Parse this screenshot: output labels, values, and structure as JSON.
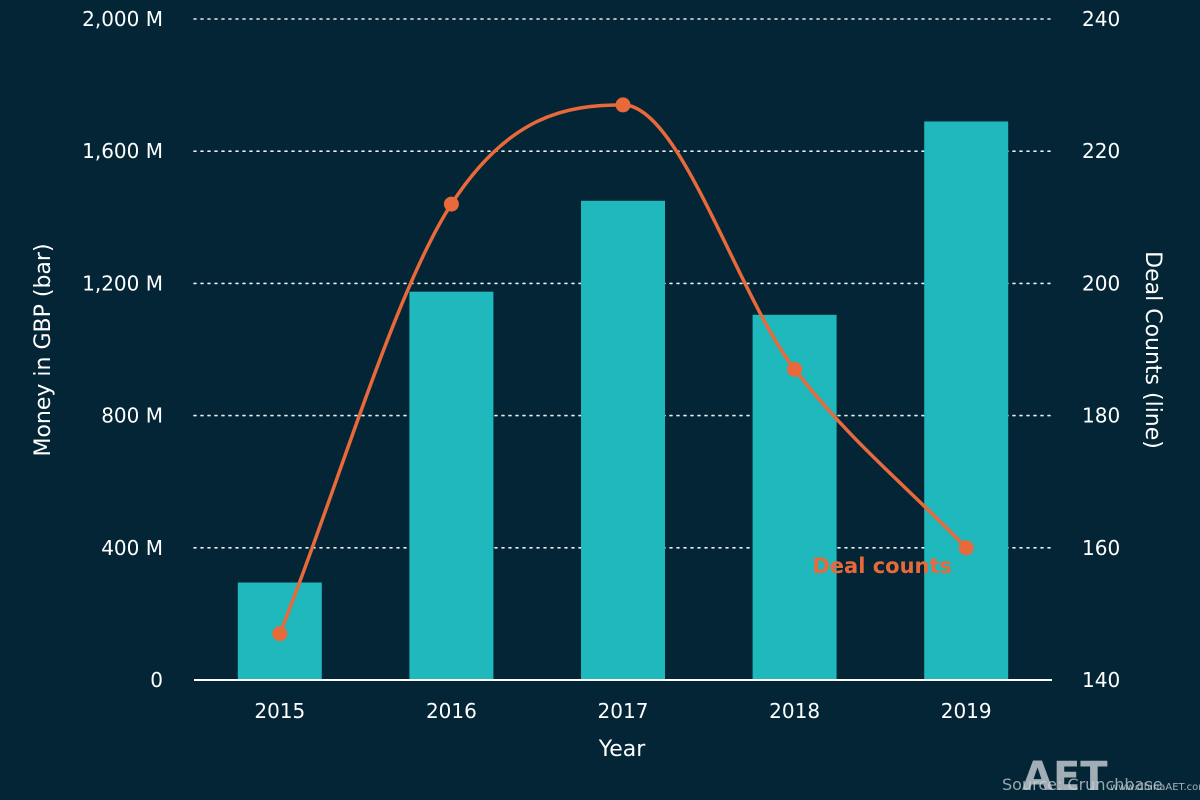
{
  "chart_data": {
    "type": "bar",
    "title": "",
    "xlabel": "Year",
    "ylabel": "Money in GBP (bar)",
    "y2label": "Deal Counts (line)",
    "categories": [
      "2015",
      "2016",
      "2017",
      "2018",
      "2019"
    ],
    "ylim": [
      0,
      2000
    ],
    "y2lim": [
      140,
      240
    ],
    "yticks": [
      "0",
      "400 M",
      "800 M",
      "1,200 M",
      "1,600 M",
      "2,000 M"
    ],
    "yticks_values": [
      0,
      400,
      800,
      1200,
      1600,
      2000
    ],
    "y2ticks": [
      "140",
      "160",
      "180",
      "200",
      "220",
      "240"
    ],
    "y2ticks_values": [
      140,
      160,
      180,
      200,
      220,
      240
    ],
    "grid": true,
    "series": [
      {
        "type": "bar",
        "axis": "left",
        "values": [
          295,
          1175,
          1450,
          1105,
          1690
        ],
        "color": "#1fb8bd"
      },
      {
        "type": "line",
        "axis": "right",
        "smooth": true,
        "name": "Deal counts",
        "values": [
          147,
          212,
          227,
          187,
          160
        ],
        "color": "#e8693a"
      }
    ],
    "annotations": [
      {
        "text": "Deal counts",
        "category": "2019",
        "color": "#e8693a"
      }
    ]
  },
  "source_text": "Source: Crunchbase",
  "watermark": {
    "text": "AET",
    "sub": "www.ChinaAET.com"
  },
  "colors": {
    "background": "#032535",
    "bar": "#1fb8bd",
    "line": "#e8693a",
    "grid": "#e6edf0",
    "text": "#ffffff"
  }
}
